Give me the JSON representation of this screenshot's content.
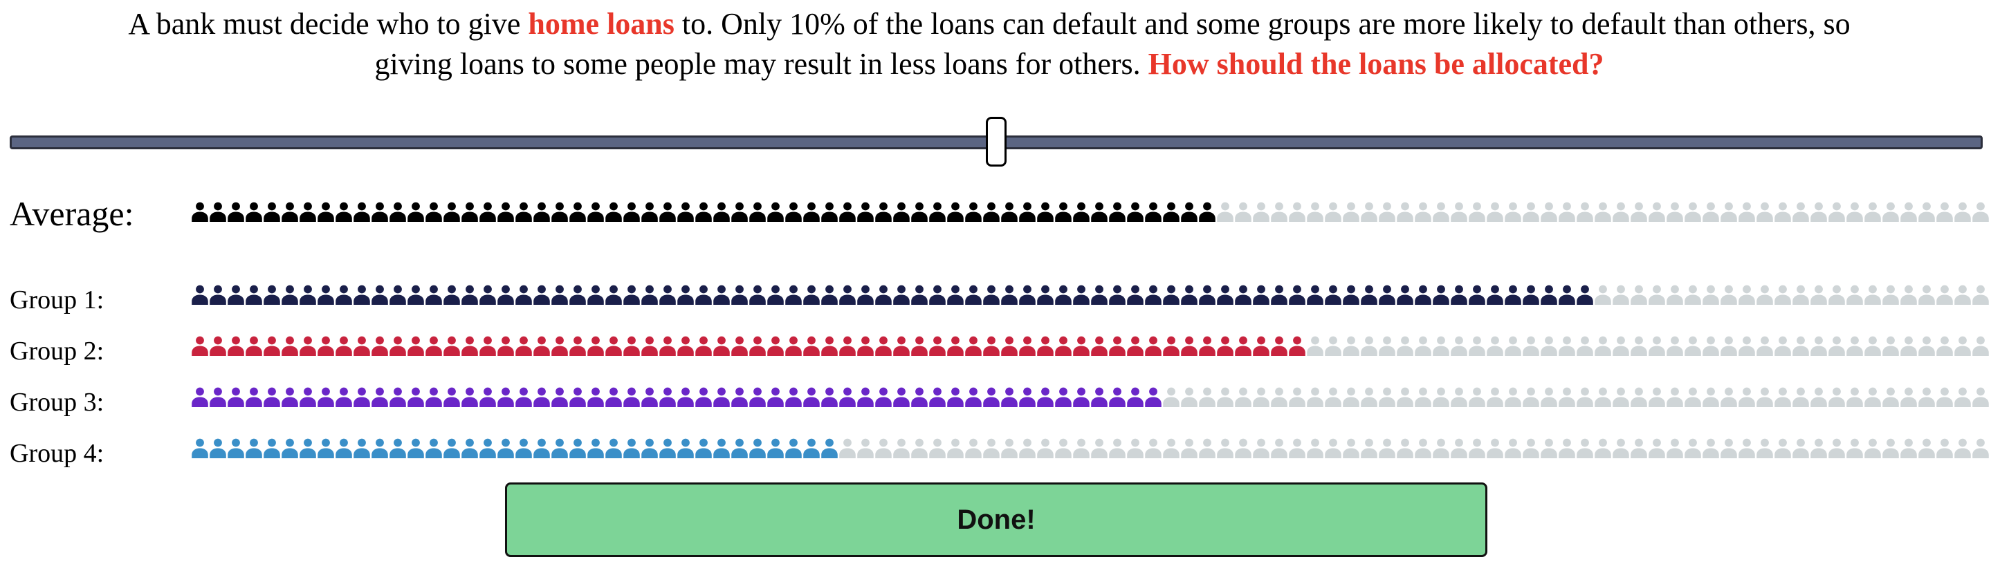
{
  "prompt": {
    "part1": "A bank must decide who to give ",
    "highlight1": "home loans",
    "part2": " to. Only 10% of the loans can default and some groups are more likely to default than others, so giving loans to some people may result in less loans for others. ",
    "highlight2": "How should the loans be allocated?"
  },
  "slider": {
    "value_fraction": 0.5
  },
  "rows": [
    {
      "id": "avg",
      "label": "Average:",
      "filled": 57,
      "total": 100,
      "color": "#000000",
      "empty_color": "#cfd5d7"
    },
    {
      "id": "g1",
      "label": "Group 1:",
      "filled": 78,
      "total": 100,
      "color": "#1a1f4a",
      "empty_color": "#cfd5d7"
    },
    {
      "id": "g2",
      "label": "Group 2:",
      "filled": 62,
      "total": 100,
      "color": "#c8233e",
      "empty_color": "#cfd5d7"
    },
    {
      "id": "g3",
      "label": "Group 3:",
      "filled": 54,
      "total": 100,
      "color": "#6a26c8",
      "empty_color": "#cfd5d7"
    },
    {
      "id": "g4",
      "label": "Group 4:",
      "filled": 36,
      "total": 100,
      "color": "#3a8fc8",
      "empty_color": "#cfd5d7"
    }
  ],
  "done_label": "Done!",
  "icons": {
    "person": "person-icon"
  }
}
